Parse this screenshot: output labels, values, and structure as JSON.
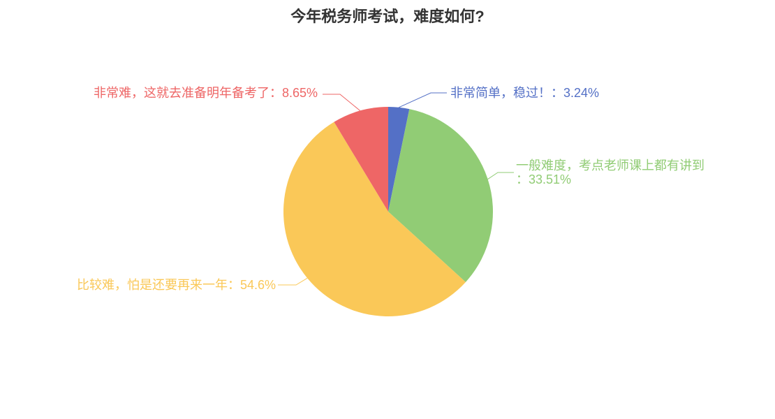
{
  "title": "今年税务师考试，难度如何?",
  "colors": {
    "background": "#ffffff",
    "title_text": "#333333"
  },
  "chart_data": {
    "type": "pie",
    "title": "今年税务师考试，难度如何?",
    "legend_position": "none",
    "start_angle_deg": 0,
    "direction": "clockwise-from-12-oclock",
    "slices": [
      {
        "name": "非常简单，稳过！",
        "value_pct": 3.24,
        "pct_text": "3.24%",
        "color": "#5470c6",
        "label_lines": [
          "非常简单，稳过！：3.24%"
        ]
      },
      {
        "name": "一般难度，考点老师课上都有讲到",
        "value_pct": 33.51,
        "pct_text": "33.51%",
        "color": "#91cc75",
        "label_lines": [
          "一般难度，考点老师课上都有讲到",
          "：33.51%"
        ]
      },
      {
        "name": "比较难，怕是还要再来一年",
        "value_pct": 54.6,
        "pct_text": "54.6%",
        "color": "#fac858",
        "label_lines": [
          "比较难，怕是还要再来一年：54.6%"
        ]
      },
      {
        "name": "非常难，这就去准备明年备考了",
        "value_pct": 8.65,
        "pct_text": "8.65%",
        "color": "#ee6666",
        "label_lines": [
          "非常难，这就去准备明年备考了：8.65%"
        ]
      }
    ]
  }
}
